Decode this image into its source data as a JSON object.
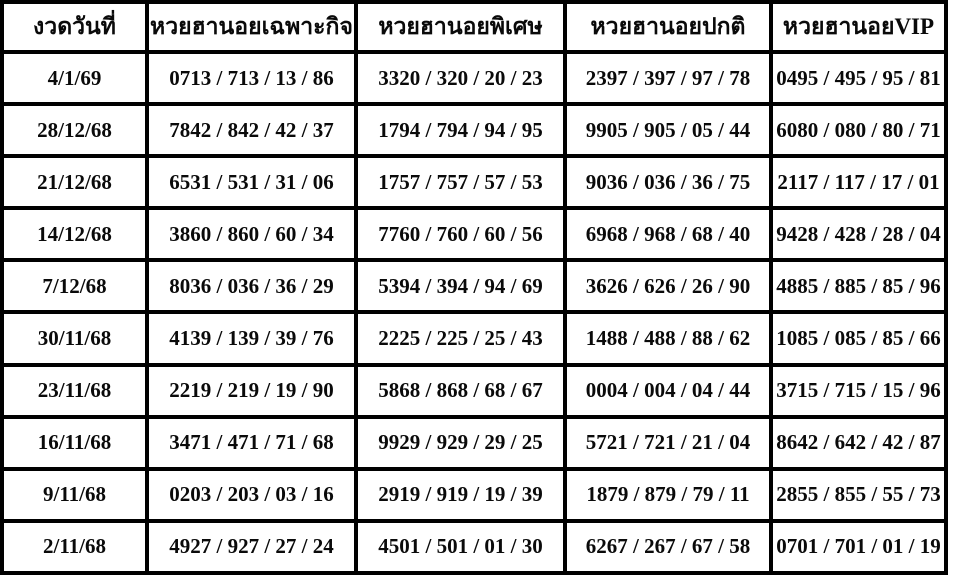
{
  "table": {
    "headers": {
      "date": "งวดวันที่",
      "special_purpose": "หวยฮานอยเฉพาะกิจ",
      "special": "หวยฮานอยพิเศษ",
      "normal": "หวยฮานอยปกติ",
      "vip": "หวยฮานอยVIP"
    },
    "rows": [
      {
        "date": "4/1/69",
        "values": [
          "0713 / 713 / 13 / 86",
          "3320 / 320 / 20 / 23",
          "2397 / 397 / 97 / 78",
          "0495 / 495 / 95 / 81"
        ]
      },
      {
        "date": "28/12/68",
        "values": [
          "7842 / 842 / 42 / 37",
          "1794 / 794 / 94 / 95",
          "9905 / 905 / 05 / 44",
          "6080 / 080 / 80 / 71"
        ]
      },
      {
        "date": "21/12/68",
        "values": [
          "6531 / 531 / 31 / 06",
          "1757 / 757 / 57 / 53",
          "9036 / 036 / 36 / 75",
          "2117 / 117 / 17 / 01"
        ]
      },
      {
        "date": "14/12/68",
        "values": [
          "3860 / 860 / 60 / 34",
          "7760 / 760 / 60 / 56",
          "6968 / 968 / 68 / 40",
          "9428 / 428 / 28 / 04"
        ]
      },
      {
        "date": "7/12/68",
        "values": [
          "8036 / 036 / 36 / 29",
          "5394 / 394 / 94 / 69",
          "3626 / 626 / 26 / 90",
          "4885 / 885 / 85 / 96"
        ]
      },
      {
        "date": "30/11/68",
        "values": [
          "4139 / 139 / 39 / 76",
          "2225 / 225 / 25 / 43",
          "1488 / 488 / 88 / 62",
          "1085 / 085 / 85 / 66"
        ]
      },
      {
        "date": "23/11/68",
        "values": [
          "2219 / 219 / 19 / 90",
          "5868 / 868 / 68 / 67",
          "0004 / 004 / 04 / 44",
          "3715 / 715 / 15 / 96"
        ]
      },
      {
        "date": "16/11/68",
        "values": [
          "3471 / 471 / 71 / 68",
          "9929 / 929 / 29 / 25",
          "5721 / 721 / 21 / 04",
          "8642 / 642 / 42 / 87"
        ]
      },
      {
        "date": "9/11/68",
        "values": [
          "0203 / 203 / 03 / 16",
          "2919 / 919 / 19 / 39",
          "1879 / 879 / 79 / 11",
          "2855 / 855 / 55 / 73"
        ]
      },
      {
        "date": "2/11/68",
        "values": [
          "4927 / 927 / 27 / 24",
          "4501 / 501 / 01 / 30",
          "6267 / 267 / 67 / 58",
          "0701 / 701 / 01 / 19"
        ]
      }
    ]
  },
  "colors": {
    "border": "#000000",
    "text": "#0a0a0a",
    "background": "#ffffff"
  }
}
